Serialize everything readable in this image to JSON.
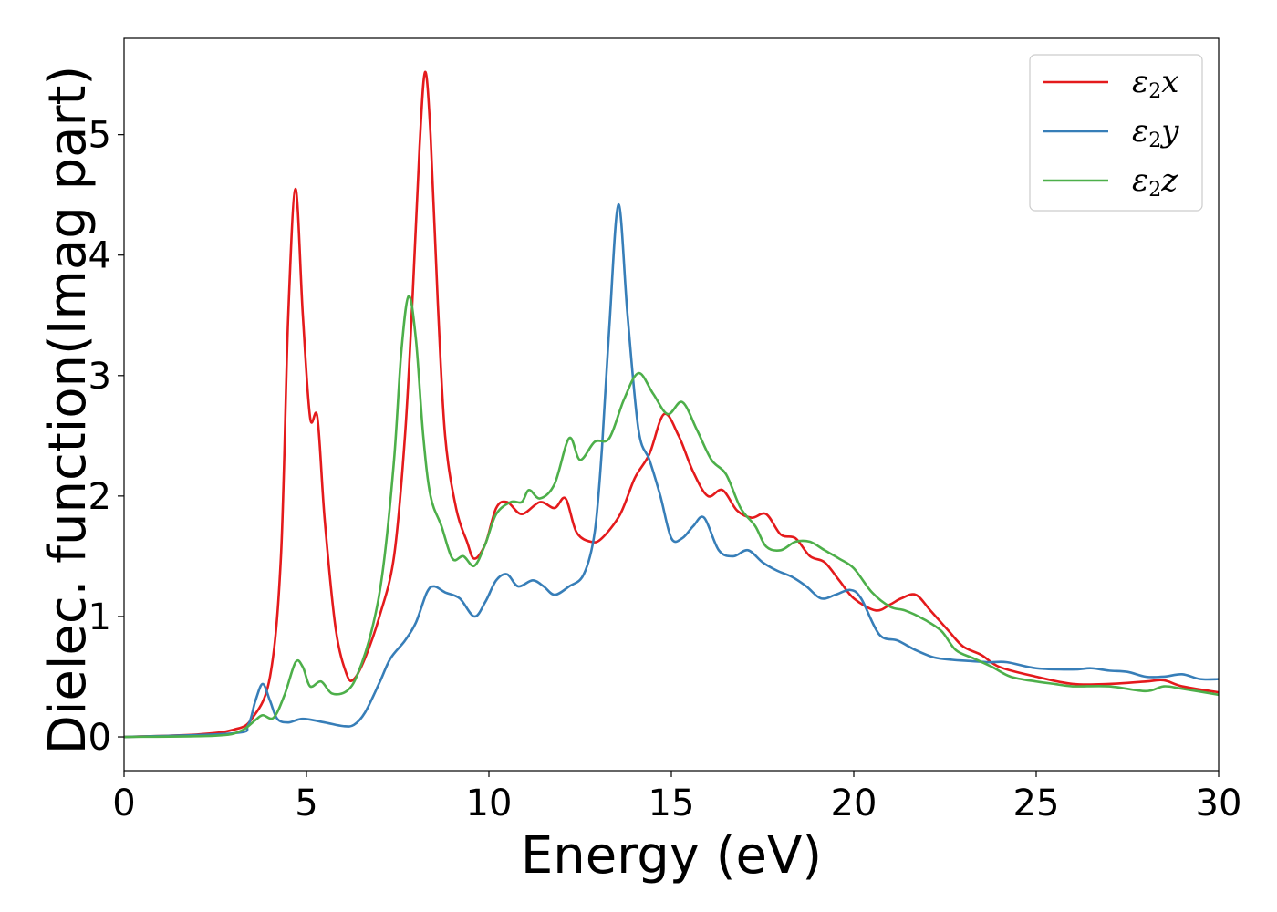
{
  "chart_data": {
    "type": "line",
    "title": "",
    "xlabel": "Energy (eV)",
    "ylabel": "Dielec. function(Imag part)",
    "xlim": [
      0,
      30
    ],
    "ylim": [
      -0.28,
      5.8
    ],
    "xticks": [
      0,
      5,
      10,
      15,
      20,
      25,
      30
    ],
    "yticks": [
      0,
      1,
      2,
      3,
      4,
      5
    ],
    "grid": false,
    "legend_position": "top-right",
    "series": [
      {
        "name": "ε₂x",
        "legend": {
          "base": "ε",
          "sub": "2",
          "axis": "x"
        },
        "color": "#e41a1c",
        "points": [
          [
            0,
            0
          ],
          [
            2,
            0.02
          ],
          [
            3,
            0.06
          ],
          [
            3.5,
            0.15
          ],
          [
            4,
            0.5
          ],
          [
            4.3,
            1.5
          ],
          [
            4.5,
            3.5
          ],
          [
            4.7,
            4.55
          ],
          [
            4.9,
            3.5
          ],
          [
            5.1,
            2.65
          ],
          [
            5.3,
            2.65
          ],
          [
            5.5,
            1.8
          ],
          [
            5.8,
            0.9
          ],
          [
            6.1,
            0.52
          ],
          [
            6.3,
            0.48
          ],
          [
            6.6,
            0.65
          ],
          [
            7,
            1.0
          ],
          [
            7.4,
            1.5
          ],
          [
            7.7,
            2.5
          ],
          [
            7.9,
            3.6
          ],
          [
            8.1,
            4.9
          ],
          [
            8.25,
            5.52
          ],
          [
            8.4,
            5.0
          ],
          [
            8.6,
            3.6
          ],
          [
            8.8,
            2.5
          ],
          [
            9.1,
            1.9
          ],
          [
            9.4,
            1.62
          ],
          [
            9.6,
            1.48
          ],
          [
            9.9,
            1.6
          ],
          [
            10.2,
            1.9
          ],
          [
            10.5,
            1.95
          ],
          [
            10.9,
            1.85
          ],
          [
            11.4,
            1.95
          ],
          [
            11.8,
            1.9
          ],
          [
            12.1,
            1.98
          ],
          [
            12.4,
            1.7
          ],
          [
            12.8,
            1.62
          ],
          [
            13.1,
            1.65
          ],
          [
            13.6,
            1.85
          ],
          [
            14,
            2.15
          ],
          [
            14.4,
            2.35
          ],
          [
            14.8,
            2.68
          ],
          [
            15.2,
            2.5
          ],
          [
            15.6,
            2.2
          ],
          [
            16,
            2.0
          ],
          [
            16.4,
            2.05
          ],
          [
            16.8,
            1.88
          ],
          [
            17.2,
            1.82
          ],
          [
            17.6,
            1.85
          ],
          [
            18,
            1.68
          ],
          [
            18.4,
            1.65
          ],
          [
            18.8,
            1.5
          ],
          [
            19.2,
            1.45
          ],
          [
            19.6,
            1.3
          ],
          [
            20,
            1.15
          ],
          [
            20.6,
            1.05
          ],
          [
            21,
            1.1
          ],
          [
            21.3,
            1.15
          ],
          [
            21.7,
            1.18
          ],
          [
            22.1,
            1.05
          ],
          [
            22.6,
            0.88
          ],
          [
            23,
            0.75
          ],
          [
            23.5,
            0.68
          ],
          [
            24,
            0.58
          ],
          [
            25,
            0.5
          ],
          [
            26,
            0.44
          ],
          [
            27,
            0.44
          ],
          [
            28,
            0.46
          ],
          [
            28.5,
            0.47
          ],
          [
            29,
            0.42
          ],
          [
            30,
            0.37
          ]
        ]
      },
      {
        "name": "ε₂y",
        "legend": {
          "base": "ε",
          "sub": "2",
          "axis": "y"
        },
        "color": "#377eb8",
        "points": [
          [
            0,
            0
          ],
          [
            3,
            0.03
          ],
          [
            3.4,
            0.1
          ],
          [
            3.6,
            0.3
          ],
          [
            3.8,
            0.44
          ],
          [
            4,
            0.3
          ],
          [
            4.2,
            0.15
          ],
          [
            4.5,
            0.12
          ],
          [
            4.9,
            0.15
          ],
          [
            5.5,
            0.12
          ],
          [
            6,
            0.09
          ],
          [
            6.3,
            0.1
          ],
          [
            6.6,
            0.2
          ],
          [
            7,
            0.45
          ],
          [
            7.3,
            0.65
          ],
          [
            7.7,
            0.8
          ],
          [
            8,
            0.95
          ],
          [
            8.3,
            1.2
          ],
          [
            8.5,
            1.25
          ],
          [
            8.8,
            1.2
          ],
          [
            9.2,
            1.15
          ],
          [
            9.6,
            1.0
          ],
          [
            9.9,
            1.12
          ],
          [
            10.2,
            1.3
          ],
          [
            10.5,
            1.35
          ],
          [
            10.8,
            1.25
          ],
          [
            11.2,
            1.3
          ],
          [
            11.5,
            1.25
          ],
          [
            11.8,
            1.18
          ],
          [
            12.2,
            1.25
          ],
          [
            12.6,
            1.35
          ],
          [
            12.9,
            1.7
          ],
          [
            13.1,
            2.4
          ],
          [
            13.3,
            3.4
          ],
          [
            13.55,
            4.42
          ],
          [
            13.8,
            3.5
          ],
          [
            14.1,
            2.55
          ],
          [
            14.4,
            2.3
          ],
          [
            14.7,
            2.0
          ],
          [
            15,
            1.65
          ],
          [
            15.3,
            1.65
          ],
          [
            15.6,
            1.75
          ],
          [
            15.9,
            1.82
          ],
          [
            16.3,
            1.55
          ],
          [
            16.7,
            1.5
          ],
          [
            17.1,
            1.55
          ],
          [
            17.5,
            1.45
          ],
          [
            17.9,
            1.38
          ],
          [
            18.3,
            1.33
          ],
          [
            18.7,
            1.25
          ],
          [
            19.1,
            1.15
          ],
          [
            19.5,
            1.18
          ],
          [
            19.9,
            1.22
          ],
          [
            20.2,
            1.15
          ],
          [
            20.7,
            0.85
          ],
          [
            21.2,
            0.8
          ],
          [
            21.7,
            0.72
          ],
          [
            22.2,
            0.66
          ],
          [
            22.7,
            0.64
          ],
          [
            23.2,
            0.63
          ],
          [
            23.7,
            0.62
          ],
          [
            24.2,
            0.62
          ],
          [
            25,
            0.57
          ],
          [
            26,
            0.56
          ],
          [
            26.5,
            0.57
          ],
          [
            27,
            0.55
          ],
          [
            27.5,
            0.54
          ],
          [
            28,
            0.5
          ],
          [
            28.5,
            0.5
          ],
          [
            29,
            0.52
          ],
          [
            29.5,
            0.48
          ],
          [
            30,
            0.48
          ]
        ]
      },
      {
        "name": "ε₂z",
        "legend": {
          "base": "ε",
          "sub": "2",
          "axis": "z"
        },
        "color": "#4daf4a",
        "points": [
          [
            0,
            0
          ],
          [
            2.5,
            0.01
          ],
          [
            3.2,
            0.05
          ],
          [
            3.6,
            0.14
          ],
          [
            3.8,
            0.18
          ],
          [
            4.1,
            0.16
          ],
          [
            4.4,
            0.35
          ],
          [
            4.7,
            0.62
          ],
          [
            4.9,
            0.58
          ],
          [
            5.1,
            0.42
          ],
          [
            5.4,
            0.46
          ],
          [
            5.7,
            0.36
          ],
          [
            6.1,
            0.38
          ],
          [
            6.4,
            0.52
          ],
          [
            6.8,
            0.9
          ],
          [
            7.1,
            1.4
          ],
          [
            7.4,
            2.3
          ],
          [
            7.6,
            3.2
          ],
          [
            7.8,
            3.66
          ],
          [
            8,
            3.3
          ],
          [
            8.2,
            2.5
          ],
          [
            8.4,
            2.0
          ],
          [
            8.7,
            1.75
          ],
          [
            9,
            1.48
          ],
          [
            9.3,
            1.5
          ],
          [
            9.6,
            1.42
          ],
          [
            9.9,
            1.6
          ],
          [
            10.2,
            1.85
          ],
          [
            10.6,
            1.95
          ],
          [
            10.9,
            1.95
          ],
          [
            11.1,
            2.05
          ],
          [
            11.4,
            1.98
          ],
          [
            11.8,
            2.1
          ],
          [
            12.2,
            2.48
          ],
          [
            12.5,
            2.3
          ],
          [
            12.9,
            2.45
          ],
          [
            13.3,
            2.48
          ],
          [
            13.7,
            2.8
          ],
          [
            14.1,
            3.02
          ],
          [
            14.5,
            2.85
          ],
          [
            14.9,
            2.68
          ],
          [
            15.3,
            2.78
          ],
          [
            15.7,
            2.55
          ],
          [
            16.1,
            2.3
          ],
          [
            16.5,
            2.18
          ],
          [
            16.9,
            1.9
          ],
          [
            17.3,
            1.75
          ],
          [
            17.6,
            1.58
          ],
          [
            18,
            1.55
          ],
          [
            18.4,
            1.62
          ],
          [
            18.8,
            1.62
          ],
          [
            19.2,
            1.55
          ],
          [
            19.6,
            1.48
          ],
          [
            20,
            1.4
          ],
          [
            20.5,
            1.2
          ],
          [
            21,
            1.08
          ],
          [
            21.4,
            1.05
          ],
          [
            21.9,
            0.98
          ],
          [
            22.4,
            0.88
          ],
          [
            22.8,
            0.72
          ],
          [
            23.3,
            0.65
          ],
          [
            23.8,
            0.58
          ],
          [
            24.3,
            0.5
          ],
          [
            25,
            0.46
          ],
          [
            25.5,
            0.44
          ],
          [
            26,
            0.42
          ],
          [
            27,
            0.42
          ],
          [
            28,
            0.38
          ],
          [
            28.5,
            0.42
          ],
          [
            29,
            0.4
          ],
          [
            30,
            0.35
          ]
        ]
      }
    ]
  }
}
